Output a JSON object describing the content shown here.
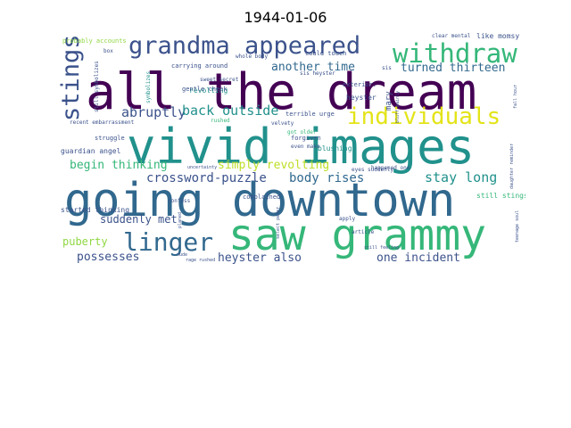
{
  "title": "1944-01-06",
  "words": {
    "all_the_dream": "all the dream",
    "going_downtown": "going downtown",
    "vivid_images": "vivid images",
    "saw_grammy": "saw grammy",
    "grandma_appeared": "grandma appeared",
    "withdraw": "withdraw",
    "individuals": "individuals",
    "stings": "stings",
    "linger": "linger",
    "abruptly": "abruptly",
    "back_outside": "back outside",
    "another_time": "another time",
    "turned_thirteen": "turned thirteen",
    "crossword_puzzle": "crossword-puzzle",
    "simply_revolting": "simply revolting",
    "begin_thinking": "begin thinking",
    "body_rises": "body rises",
    "stay_long": "stay long",
    "suddenly_met": "suddenly met",
    "puberty": "puberty",
    "possesses": "possesses",
    "heyster_also": "heyster also",
    "one_incident": "one incident",
    "guardian_angel": "guardian angel",
    "started_thinking": "started thinking",
    "still_stings": "still stings",
    "probably_accounts": "probably accounts",
    "like_momsy": "like momsy",
    "clear_mental": "clear mental",
    "carrying_around": "carrying around",
    "revolting": "revolting",
    "could_touch": "could touch",
    "whole_body": "whole body",
    "sweet_secret": "sweet secret",
    "gentle_cheek": "gentle cheek",
    "recent_embarrassment": "recent embarrassment",
    "terrible_urge": "terrible urge",
    "heyster": "heyster",
    "exterior": "exterior.",
    "sis_heyster": "sis heyster",
    "mary": "mary",
    "blushing": "blushing",
    "forgiven": "forgiven",
    "got_older": "got older",
    "complained": "complained",
    "velvety": "velvety",
    "even_make": "even make",
    "eyes_suddenly": "eyes suddenly",
    "happened_one": "happened one",
    "struggle": "struggle",
    "apply": "apply",
    "article": "article",
    "confess": "confess",
    "still_feeling": "still feeling",
    "rage_rushed": "rage rushed",
    "nude": "nude",
    "uncertainty": "uncertainty",
    "rushed": "rushed",
    "box": "box",
    "sis": "sis",
    "still_symbolizes": "still symbolizes",
    "symbolizes": "symbolizes",
    "vertical_small_1": "bluff mainly",
    "vertical_small_2": "fall hour",
    "vertical_small_3": "daughter reminder",
    "vertical_small_4": "teenage soul",
    "vertical_small_5": "select peter",
    "vertical_small_6": "planed"
  },
  "palette": {
    "dark_purple": "#440154",
    "indigo": "#3b528b",
    "blue": "#31688e",
    "teal": "#21918c",
    "green": "#35b779",
    "lime": "#90d743",
    "yellow": "#e3e418",
    "pale_yellow": "#bddf26"
  }
}
